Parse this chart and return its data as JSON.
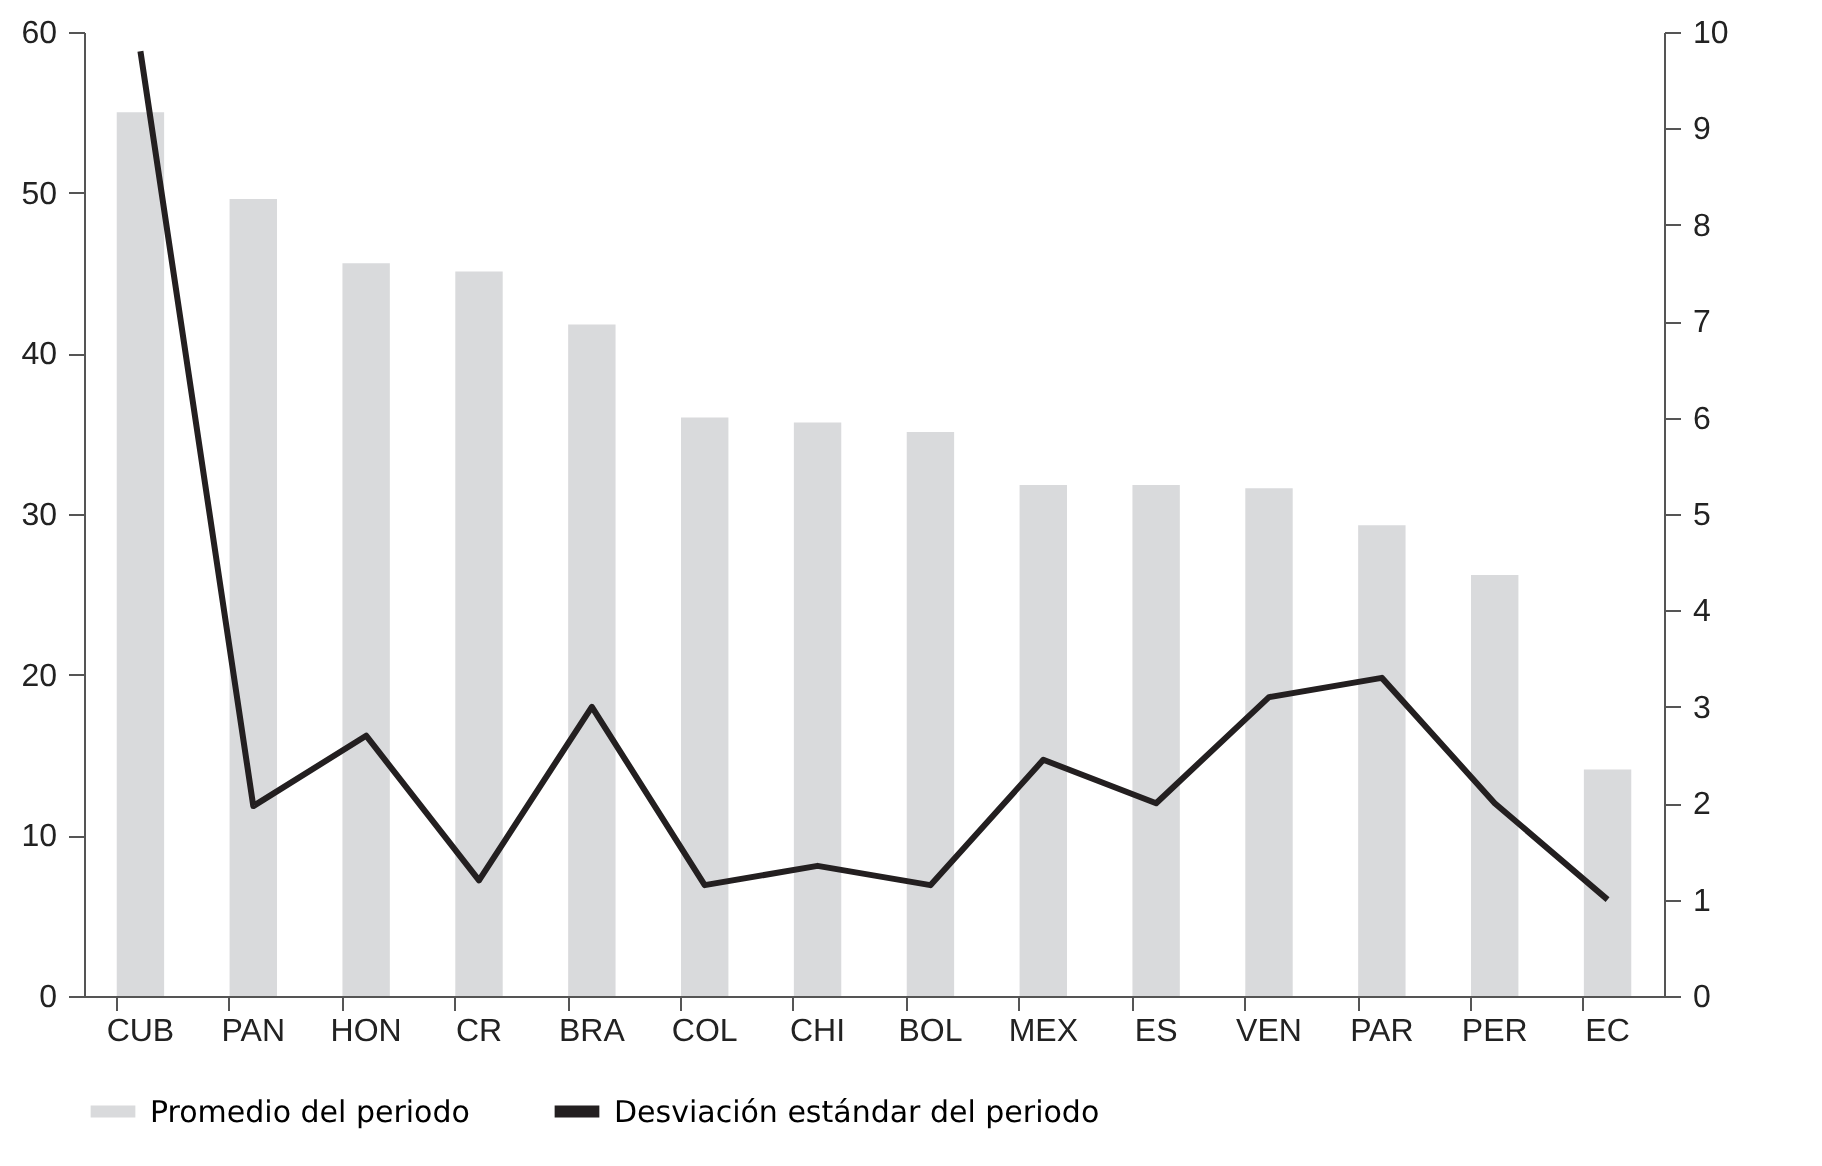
{
  "chart_data": {
    "type": "bar",
    "categories": [
      "CUB",
      "PAN",
      "HON",
      "CR",
      "BRA",
      "COL",
      "CHI",
      "BOL",
      "MEX",
      "ES",
      "VEN",
      "PAR",
      "PER",
      "EC"
    ],
    "series": [
      {
        "name": "Promedio del periodo",
        "color": "#d9dadc",
        "values": [
          55.0,
          49.6,
          45.6,
          45.1,
          41.8,
          36.0,
          35.7,
          35.1,
          31.8,
          31.8,
          31.6,
          29.3,
          26.2,
          14.1
        ]
      },
      {
        "name": "Desviación estándar del periodo",
        "type": "line",
        "axis": "y2",
        "color": "#231f20",
        "values": [
          9.8,
          1.97,
          2.7,
          1.2,
          3.0,
          1.15,
          1.35,
          1.15,
          2.45,
          2.0,
          3.1,
          3.3,
          2.0,
          1.0
        ]
      }
    ],
    "ylim": [
      0,
      60
    ],
    "yticks": [
      0,
      10,
      20,
      30,
      40,
      50,
      60
    ],
    "y2lim": [
      0,
      10
    ],
    "y2ticks": [
      0,
      1,
      2,
      3,
      4,
      5,
      6,
      7,
      8,
      9,
      10
    ],
    "grid": false,
    "legend": "bottom",
    "marker": "none",
    "line_style": "solid"
  }
}
